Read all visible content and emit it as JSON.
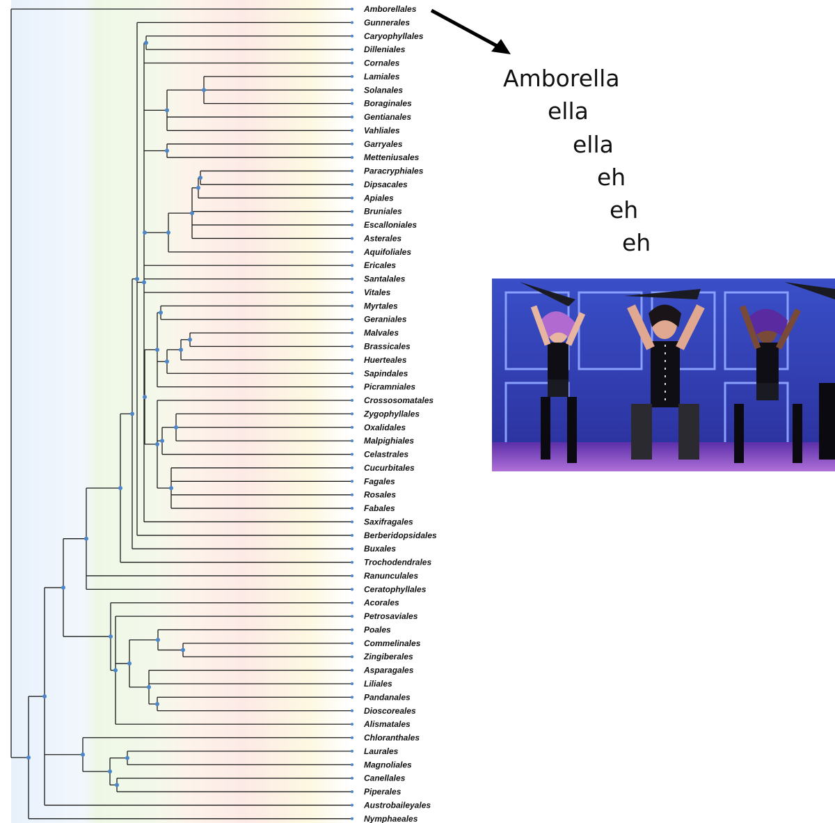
{
  "tree": {
    "leaves": [
      "Amborellales",
      "Gunnerales",
      "Caryophyllales",
      "Dilleniales",
      "Cornales",
      "Lamiales",
      "Solanales",
      "Boraginales",
      "Gentianales",
      "Vahliales",
      "Garryales",
      "Metteniusales",
      "Paracryphiales",
      "Dipsacales",
      "Apiales",
      "Bruniales",
      "Escalloniales",
      "Asterales",
      "Aquifoliales",
      "Ericales",
      "Santalales",
      "Vitales",
      "Myrtales",
      "Geraniales",
      "Malvales",
      "Brassicales",
      "Huerteales",
      "Sapindales",
      "Picramniales",
      "Crossosomatales",
      "Zygophyllales",
      "Oxalidales",
      "Malpighiales",
      "Celastrales",
      "Cucurbitales",
      "Fagales",
      "Rosales",
      "Fabales",
      "Saxifragales",
      "Berberidopsidales",
      "Buxales",
      "Trochodendrales",
      "Ranunculales",
      "Ceratophyllales",
      "Acorales",
      "Petrosaviales",
      "Poales",
      "Commelinales",
      "Zingiberales",
      "Asparagales",
      "Liliales",
      "Pandanales",
      "Dioscoreales",
      "Alismatales",
      "Chloranthales",
      "Laurales",
      "Magnoliales",
      "Canellales",
      "Piperales",
      "Austrobaileyales",
      "Nymphaeales"
    ],
    "line_color": "#1a1a1a",
    "node_color": "#4a86c8"
  },
  "caption": {
    "lines": [
      "Amborella",
      "ella",
      "ella",
      "eh",
      "eh",
      "eh"
    ]
  },
  "photo": {
    "description_icon": "dance-performance-photo"
  }
}
